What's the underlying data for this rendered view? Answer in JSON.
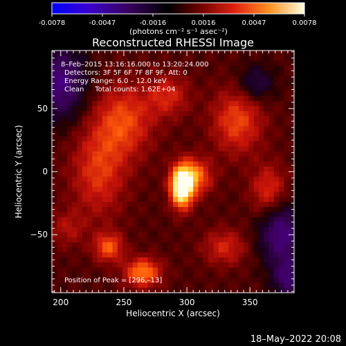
{
  "colorbar": {
    "ticks": [
      "-0.0078",
      "-0.0047",
      "-0.0016",
      "0.0016",
      "0.0047",
      "0.0078"
    ],
    "units": "(photons cm⁻² s⁻¹ asec⁻²)"
  },
  "title": "Reconstructed RHESSI Image",
  "annotations": {
    "time_range": "8–Feb–2015 13:16:16.000 to 13:20:24.000",
    "detectors": "Detectors: 3F 5F 6F 7F 8F 9F, Att: 0",
    "energy": "Energy Range: 6.0 – 12.0 keV",
    "clean": "Clean     Total counts: 1.62E+04",
    "peak": "Position of Peak = [296,–13]"
  },
  "footer": {
    "date": "18–May–2022 20:08"
  },
  "chart_data": {
    "type": "heatmap",
    "title": "Reconstructed RHESSI Image",
    "xlabel": "Heliocentric X (arcsec)",
    "ylabel": "Heliocentric Y (arcsec)",
    "xlim": [
      193,
      385
    ],
    "ylim": [
      -96,
      96
    ],
    "x_ticks": [
      200,
      250,
      300,
      350
    ],
    "y_ticks": [
      50,
      0,
      -50
    ],
    "x_tick_labels": [
      "200",
      "250",
      "300",
      "350"
    ],
    "y_tick_labels": [
      "50",
      "0",
      "−50"
    ],
    "color_range": [
      -0.0078,
      0.0078
    ],
    "colormap": [
      "#0000ff",
      "#5a00a0",
      "#2a0030",
      "#000000",
      "#550000",
      "#cc1010",
      "#ff6000",
      "#ffd040",
      "#ffffff"
    ],
    "peak": [
      296,
      -13
    ],
    "sources": [
      {
        "x": 296,
        "y": -13,
        "amp": 1.0,
        "sx": 6,
        "sy": 11
      },
      {
        "x": 305,
        "y": -4,
        "amp": 0.55,
        "sx": 10,
        "sy": 10
      },
      {
        "x": 265,
        "y": -80,
        "amp": 0.55,
        "sx": 10,
        "sy": 8
      },
      {
        "x": 238,
        "y": -60,
        "amp": 0.45,
        "sx": 8,
        "sy": 8
      },
      {
        "x": 250,
        "y": 40,
        "amp": 0.4,
        "sx": 16,
        "sy": 20
      },
      {
        "x": 340,
        "y": 40,
        "amp": 0.4,
        "sx": 14,
        "sy": 18
      },
      {
        "x": 365,
        "y": -15,
        "amp": 0.35,
        "sx": 10,
        "sy": 14
      },
      {
        "x": 230,
        "y": 0,
        "amp": 0.35,
        "sx": 15,
        "sy": 25
      },
      {
        "x": 285,
        "y": 60,
        "amp": 0.3,
        "sx": 12,
        "sy": 12
      },
      {
        "x": 330,
        "y": -60,
        "amp": 0.3,
        "sx": 12,
        "sy": 10
      },
      {
        "x": 205,
        "y": -45,
        "amp": 0.2,
        "sx": 10,
        "sy": 10
      }
    ],
    "negative_regions": [
      {
        "x": 200,
        "y": 70,
        "amp": 0.5,
        "sx": 14,
        "sy": 20
      },
      {
        "x": 375,
        "y": -50,
        "amp": 0.5,
        "sx": 12,
        "sy": 18
      },
      {
        "x": 355,
        "y": 70,
        "amp": 0.3,
        "sx": 10,
        "sy": 10
      },
      {
        "x": 380,
        "y": -85,
        "amp": 0.4,
        "sx": 8,
        "sy": 10
      }
    ]
  }
}
